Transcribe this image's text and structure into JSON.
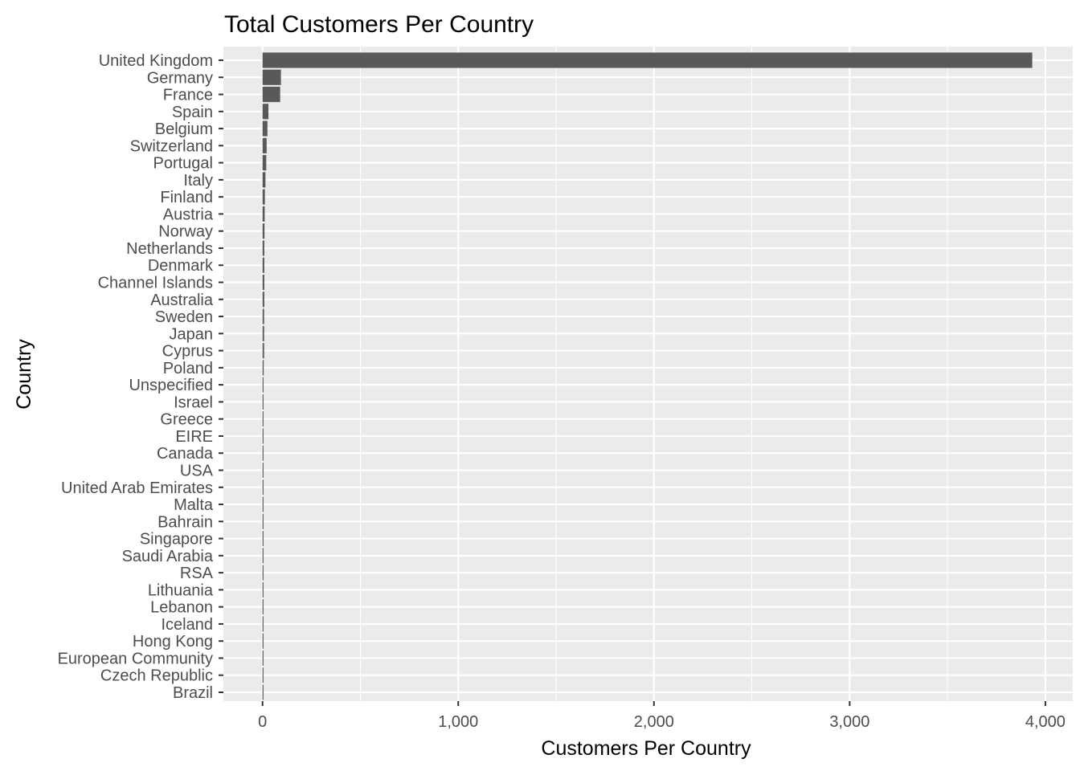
{
  "chart_data": {
    "type": "bar",
    "orientation": "horizontal",
    "title": "Total Customers Per Country",
    "xlabel": "Customers Per Country",
    "ylabel": "Country",
    "xlim": [
      -200,
      4140
    ],
    "x_ticks": [
      0,
      1000,
      2000,
      3000,
      4000
    ],
    "x_tick_labels": [
      "0",
      "1,000",
      "2,000",
      "3,000",
      "4,000"
    ],
    "grid": true,
    "legend": "none",
    "categories": [
      "United Kingdom",
      "Germany",
      "France",
      "Spain",
      "Belgium",
      "Switzerland",
      "Portugal",
      "Italy",
      "Finland",
      "Austria",
      "Norway",
      "Netherlands",
      "Denmark",
      "Channel Islands",
      "Australia",
      "Sweden",
      "Japan",
      "Cyprus",
      "Poland",
      "Unspecified",
      "Israel",
      "Greece",
      "EIRE",
      "Canada",
      "USA",
      "United Arab Emirates",
      "Malta",
      "Bahrain",
      "Singapore",
      "Saudi Arabia",
      "RSA",
      "Lithuania",
      "Lebanon",
      "Iceland",
      "Hong Kong",
      "European Community",
      "Czech Republic",
      "Brazil"
    ],
    "values": [
      3933,
      94,
      90,
      30,
      25,
      21,
      19,
      15,
      12,
      11,
      10,
      9,
      9,
      9,
      9,
      8,
      8,
      8,
      6,
      5,
      5,
      4,
      3,
      4,
      4,
      2,
      2,
      2,
      1,
      1,
      1,
      1,
      1,
      1,
      1,
      1,
      1,
      1
    ]
  },
  "colors": {
    "panel_background": "#ebebeb",
    "grid_major": "#ffffff",
    "bar_fill": "#595959",
    "tick_text": "#4d4d4d",
    "title_text": "#000000"
  }
}
